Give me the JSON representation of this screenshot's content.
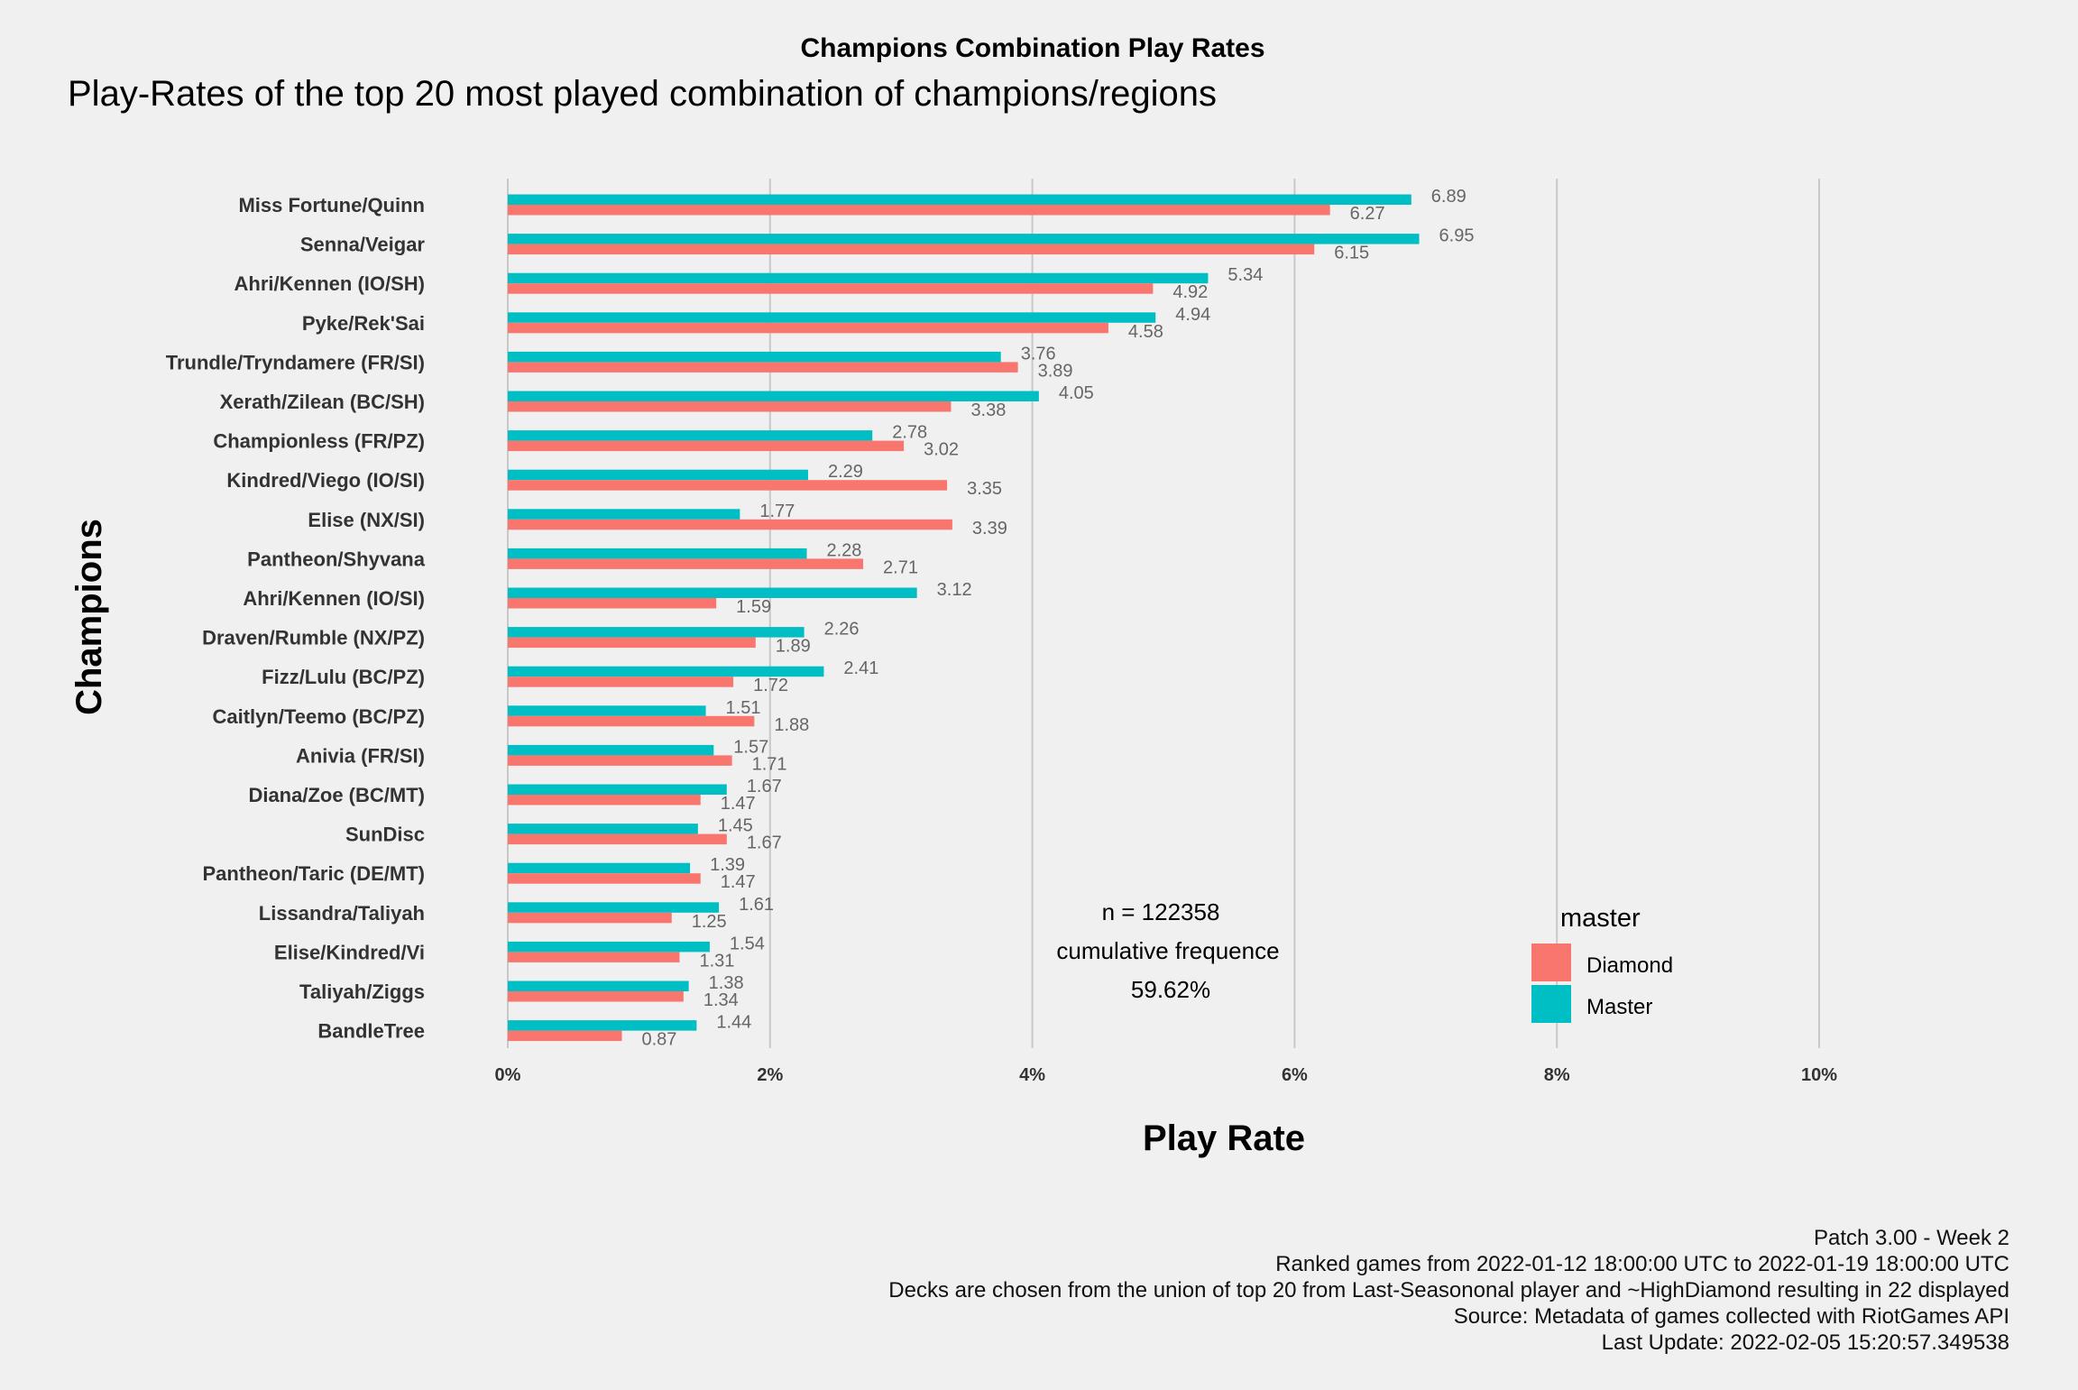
{
  "header": {
    "title": "Champions Combination Play Rates",
    "subtitle": "Play-Rates of the top 20 most played combination of champions/regions"
  },
  "annotation": {
    "line1": "n = 122358",
    "line2": "cumulative frequence",
    "line3": "59.62%"
  },
  "legend_title": "master",
  "caption": {
    "line1": "Patch 3.00 - Week 2",
    "line2": "Ranked games from 2022-01-12 18:00:00 UTC to 2022-01-19 18:00:00 UTC",
    "line3": "Decks are chosen from the union of top 20 from Last-Seasononal player and ~HighDiamond resulting in 22 displayed",
    "line4": "Source: Metadata of games collected with RiotGames API",
    "line5": "Last Update: 2022-02-05 15:20:57.349538"
  },
  "chart_data": {
    "type": "bar",
    "orientation": "horizontal",
    "title": "Champions Combination Play Rates",
    "subtitle": "Play-Rates of the top 20 most played combination of champions/regions",
    "xlabel": "Play Rate",
    "ylabel": "Champions",
    "xlim": [
      0,
      10
    ],
    "xticks": [
      "0%",
      "2%",
      "4%",
      "6%",
      "8%",
      "10%"
    ],
    "grid": "vertical major",
    "legend_position": "right",
    "categories": [
      "Miss Fortune/Quinn",
      "Senna/Veigar",
      "Ahri/Kennen (IO/SH)",
      "Pyke/Rek'Sai",
      "Trundle/Tryndamere (FR/SI)",
      "Xerath/Zilean (BC/SH)",
      "Championless (FR/PZ)",
      "Kindred/Viego (IO/SI)",
      "Elise (NX/SI)",
      "Pantheon/Shyvana",
      "Ahri/Kennen (IO/SI)",
      "Draven/Rumble (NX/PZ)",
      "Fizz/Lulu (BC/PZ)",
      "Caitlyn/Teemo (BC/PZ)",
      "Anivia (FR/SI)",
      "Diana/Zoe (BC/MT)",
      "SunDisc",
      "Pantheon/Taric (DE/MT)",
      "Lissandra/Taliyah",
      "Elise/Kindred/Vi",
      "Taliyah/Ziggs",
      "BandleTree"
    ],
    "series": [
      {
        "name": "Diamond",
        "color": "#f8766d",
        "values": [
          6.27,
          6.15,
          4.92,
          4.58,
          3.89,
          3.38,
          3.02,
          3.35,
          3.39,
          2.71,
          1.59,
          1.89,
          1.72,
          1.88,
          1.71,
          1.47,
          1.67,
          1.47,
          1.25,
          1.31,
          1.34,
          0.87
        ],
        "labels": [
          "6.27",
          "6.15",
          "4.92",
          "4.58",
          "3.89",
          "3.38",
          "3.02",
          "3.35",
          "3.39",
          "2.71",
          "1.59",
          "1.89",
          "1.72",
          "1.88",
          "1.71",
          "1.47",
          "1.67",
          "1.47",
          "1.25",
          "1.31",
          "1.34",
          "0.87"
        ]
      },
      {
        "name": "Master",
        "color": "#00bfc4",
        "values": [
          6.89,
          6.95,
          5.34,
          4.94,
          3.76,
          4.05,
          2.78,
          2.29,
          1.77,
          2.28,
          3.12,
          2.26,
          2.41,
          1.51,
          1.57,
          1.67,
          1.45,
          1.39,
          1.61,
          1.54,
          1.38,
          1.44
        ],
        "labels": [
          "6.89",
          "6.95",
          "5.34",
          "4.94",
          "3.76",
          "4.05",
          "2.78",
          "2.29",
          "1.77",
          "2.28",
          "3.12",
          "2.26",
          "2.41",
          "1.51",
          "1.57",
          "1.67",
          "1.45",
          "1.39",
          "1.61",
          "1.54",
          "1.38",
          "1.44"
        ]
      }
    ]
  }
}
